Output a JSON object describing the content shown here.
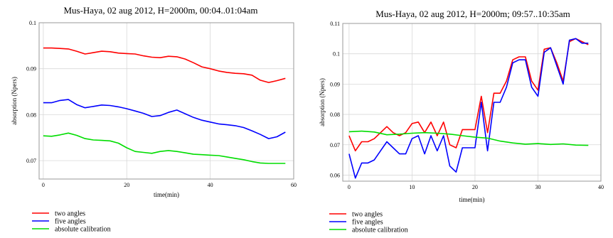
{
  "chart_data": [
    {
      "type": "line",
      "title": "Mus-Haya, 02 aug 2012, H=2000m, 00:04..01:04am",
      "xlabel": "time(min)",
      "ylabel": "absorption (Npers)",
      "xlim": [
        -1,
        60
      ],
      "ylim": [
        0.066,
        0.1
      ],
      "xticks": [
        0,
        20,
        40,
        60
      ],
      "yticks": [
        0.07,
        0.08,
        0.09,
        0.1
      ],
      "xtick_labels": [
        "0",
        "20",
        "40",
        "60"
      ],
      "ytick_labels": [
        "0.07",
        "0.08",
        "0.09",
        "0.1"
      ],
      "grid": true,
      "legend_position": "bottom-left-outside",
      "series": [
        {
          "name": "two angles",
          "color": "#ff0000",
          "x": [
            0,
            2,
            4,
            6,
            8,
            10,
            12,
            14,
            16,
            18,
            20,
            22,
            24,
            26,
            28,
            30,
            32,
            34,
            36,
            38,
            40,
            42,
            44,
            46,
            48,
            50,
            52,
            54,
            56,
            58
          ],
          "y": [
            0.0945,
            0.0945,
            0.0944,
            0.0943,
            0.0938,
            0.0932,
            0.0935,
            0.0938,
            0.0937,
            0.0934,
            0.0933,
            0.0932,
            0.0928,
            0.0925,
            0.0924,
            0.0927,
            0.0926,
            0.0921,
            0.0913,
            0.0904,
            0.09,
            0.0895,
            0.0892,
            0.089,
            0.0889,
            0.0886,
            0.0875,
            0.087,
            0.0874,
            0.0879
          ]
        },
        {
          "name": "five angles",
          "color": "#0000ff",
          "x": [
            0,
            2,
            4,
            6,
            8,
            10,
            12,
            14,
            16,
            18,
            20,
            22,
            24,
            26,
            28,
            30,
            32,
            34,
            36,
            38,
            40,
            42,
            44,
            46,
            48,
            50,
            52,
            54,
            56,
            58
          ],
          "y": [
            0.0826,
            0.0826,
            0.0831,
            0.0833,
            0.0822,
            0.0815,
            0.0818,
            0.0821,
            0.082,
            0.0817,
            0.0813,
            0.0808,
            0.0803,
            0.0796,
            0.0798,
            0.0805,
            0.081,
            0.0802,
            0.0794,
            0.0788,
            0.0784,
            0.078,
            0.0778,
            0.0776,
            0.0772,
            0.0765,
            0.0757,
            0.0748,
            0.0752,
            0.0762
          ]
        },
        {
          "name": "absolute calibration",
          "color": "#00dd00",
          "x": [
            0,
            2,
            4,
            6,
            8,
            10,
            12,
            14,
            16,
            18,
            20,
            22,
            24,
            26,
            28,
            30,
            32,
            34,
            36,
            38,
            40,
            42,
            44,
            46,
            48,
            50,
            52,
            54,
            56,
            58
          ],
          "y": [
            0.0754,
            0.0753,
            0.0756,
            0.076,
            0.0755,
            0.0748,
            0.0745,
            0.0744,
            0.0743,
            0.0738,
            0.0728,
            0.072,
            0.0718,
            0.0716,
            0.072,
            0.0722,
            0.072,
            0.0717,
            0.0714,
            0.0713,
            0.0712,
            0.0711,
            0.0708,
            0.0705,
            0.0702,
            0.0698,
            0.0695,
            0.0694,
            0.0694,
            0.0694
          ]
        }
      ]
    },
    {
      "type": "line",
      "title": "Mus-Haya, 02 aug 2012, H=2000m; 09:57..10:35am",
      "xlabel": "time(min)",
      "ylabel": "absorption (Npers)",
      "xlim": [
        -1,
        40
      ],
      "ylim": [
        0.058,
        0.11
      ],
      "xticks": [
        0,
        10,
        20,
        30,
        40
      ],
      "yticks": [
        0.06,
        0.07,
        0.08,
        0.09,
        0.1,
        0.11
      ],
      "xtick_labels": [
        "0",
        "10",
        "20",
        "30",
        "40"
      ],
      "ytick_labels": [
        "0.06",
        "0.07",
        "0.08",
        "0.09",
        "0.1",
        "0.11"
      ],
      "grid": true,
      "legend_position": "bottom-left-outside",
      "series": [
        {
          "name": "two angles",
          "color": "#ff0000",
          "x": [
            0,
            1,
            2,
            3,
            4,
            5,
            6,
            7,
            8,
            9,
            10,
            11,
            12,
            13,
            14,
            15,
            16,
            17,
            18,
            19,
            20,
            21,
            22,
            23,
            24,
            25,
            26,
            27,
            28,
            29,
            30,
            31,
            32,
            33,
            34,
            35,
            36,
            37,
            38
          ],
          "y": [
            0.073,
            0.068,
            0.071,
            0.071,
            0.072,
            0.074,
            0.076,
            0.074,
            0.073,
            0.074,
            0.077,
            0.0775,
            0.074,
            0.0775,
            0.073,
            0.0775,
            0.07,
            0.069,
            0.075,
            0.075,
            0.075,
            0.086,
            0.074,
            0.087,
            0.087,
            0.091,
            0.098,
            0.099,
            0.099,
            0.091,
            0.088,
            0.1015,
            0.102,
            0.097,
            0.091,
            0.104,
            0.105,
            0.104,
            0.103
          ]
        },
        {
          "name": "five angles",
          "color": "#0000ff",
          "x": [
            0,
            1,
            2,
            3,
            4,
            5,
            6,
            7,
            8,
            9,
            10,
            11,
            12,
            13,
            14,
            15,
            16,
            17,
            18,
            19,
            20,
            21,
            22,
            23,
            24,
            25,
            26,
            27,
            28,
            29,
            30,
            31,
            32,
            33,
            34,
            35,
            36,
            37,
            38
          ],
          "y": [
            0.067,
            0.059,
            0.064,
            0.064,
            0.065,
            0.068,
            0.071,
            0.069,
            0.067,
            0.067,
            0.072,
            0.073,
            0.067,
            0.073,
            0.068,
            0.073,
            0.063,
            0.061,
            0.069,
            0.069,
            0.069,
            0.084,
            0.068,
            0.084,
            0.084,
            0.089,
            0.097,
            0.098,
            0.098,
            0.089,
            0.086,
            0.1005,
            0.102,
            0.096,
            0.09,
            0.1045,
            0.105,
            0.1035,
            0.1035
          ]
        },
        {
          "name": "absolute calibration",
          "color": "#00dd00",
          "x": [
            0,
            2,
            4,
            6,
            8,
            10,
            12,
            14,
            16,
            18,
            20,
            22,
            24,
            26,
            28,
            30,
            32,
            34,
            36,
            38
          ],
          "y": [
            0.0743,
            0.0745,
            0.0742,
            0.0733,
            0.0735,
            0.0738,
            0.074,
            0.0738,
            0.0735,
            0.073,
            0.0725,
            0.0722,
            0.0712,
            0.0706,
            0.0702,
            0.0704,
            0.0701,
            0.0703,
            0.0699,
            0.0698
          ]
        }
      ]
    }
  ]
}
